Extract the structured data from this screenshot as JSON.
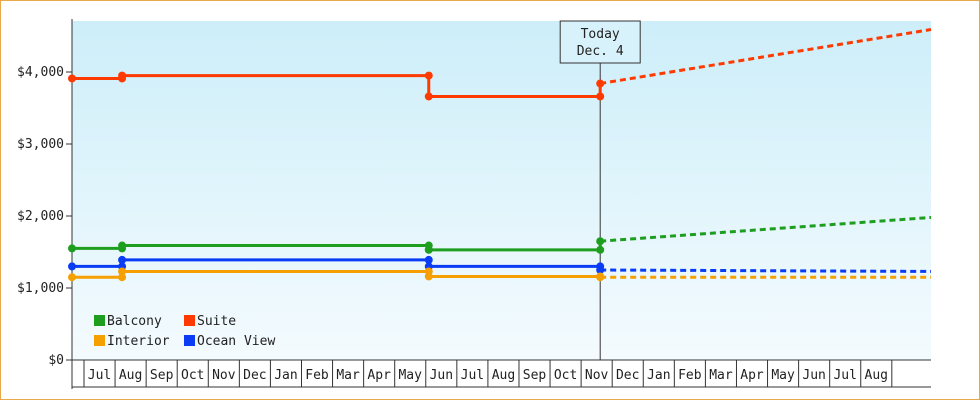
{
  "chart_data": {
    "type": "line",
    "title": "",
    "xlabel": "",
    "ylabel": "",
    "y_ticks": [
      "$0",
      "$1,000",
      "$2,000",
      "$3,000",
      "$4,000"
    ],
    "ylim": [
      0,
      4800
    ],
    "x_tick_labels": [
      "Jul",
      "Aug",
      "Sep",
      "Oct",
      "Nov",
      "Dec",
      "Jan",
      "Feb",
      "Mar",
      "Apr",
      "May",
      "Jun",
      "Jul",
      "Aug",
      "Sep",
      "Oct",
      "Nov",
      "Dec",
      "Jan",
      "Feb",
      "Mar",
      "Apr",
      "May",
      "Jun",
      "Jul",
      "Aug"
    ],
    "today_marker": {
      "line1": "Today",
      "line2": "Dec. 4"
    },
    "legend_position": "bottom-left",
    "grid": false,
    "colors": {
      "Balcony": "#1e9e1e",
      "Suite": "#ff3a00",
      "Interior": "#f5a000",
      "Ocean View": "#0a3cf5",
      "frame": "#e8a94a"
    },
    "series": [
      {
        "name": "Suite",
        "history": [
          [
            "Jul",
            3910
          ],
          [
            "Aug",
            3910
          ],
          [
            "Aug",
            3950
          ],
          [
            "Jun",
            3950
          ],
          [
            "Jun",
            3660
          ],
          [
            "Dec",
            3660
          ],
          [
            "Dec",
            3840
          ]
        ],
        "forecast": [
          [
            "Dec",
            3840
          ],
          [
            "Aug end",
            4590
          ]
        ]
      },
      {
        "name": "Balcony",
        "history": [
          [
            "Jul",
            1550
          ],
          [
            "Aug",
            1550
          ],
          [
            "Aug",
            1590
          ],
          [
            "Jun",
            1590
          ],
          [
            "Jun",
            1530
          ],
          [
            "Dec",
            1530
          ],
          [
            "Dec",
            1650
          ]
        ],
        "forecast": [
          [
            "Dec",
            1650
          ],
          [
            "Aug end",
            1980
          ]
        ]
      },
      {
        "name": "Ocean View",
        "history": [
          [
            "Jul",
            1300
          ],
          [
            "Aug",
            1300
          ],
          [
            "Aug",
            1390
          ],
          [
            "Jun",
            1390
          ],
          [
            "Jun",
            1300
          ],
          [
            "Dec",
            1300
          ],
          [
            "Dec",
            1250
          ]
        ],
        "forecast": [
          [
            "Dec",
            1250
          ],
          [
            "Aug end",
            1230
          ]
        ]
      },
      {
        "name": "Interior",
        "history": [
          [
            "Jul",
            1150
          ],
          [
            "Aug",
            1150
          ],
          [
            "Aug",
            1230
          ],
          [
            "Jun",
            1230
          ],
          [
            "Jun",
            1160
          ],
          [
            "Dec",
            1160
          ],
          [
            "Dec",
            1150
          ]
        ],
        "forecast": [
          [
            "Dec",
            1150
          ],
          [
            "Aug end",
            1150
          ]
        ]
      }
    ],
    "legend": [
      {
        "name": "Balcony"
      },
      {
        "name": "Suite"
      },
      {
        "name": "Interior"
      },
      {
        "name": "Ocean View"
      }
    ]
  }
}
